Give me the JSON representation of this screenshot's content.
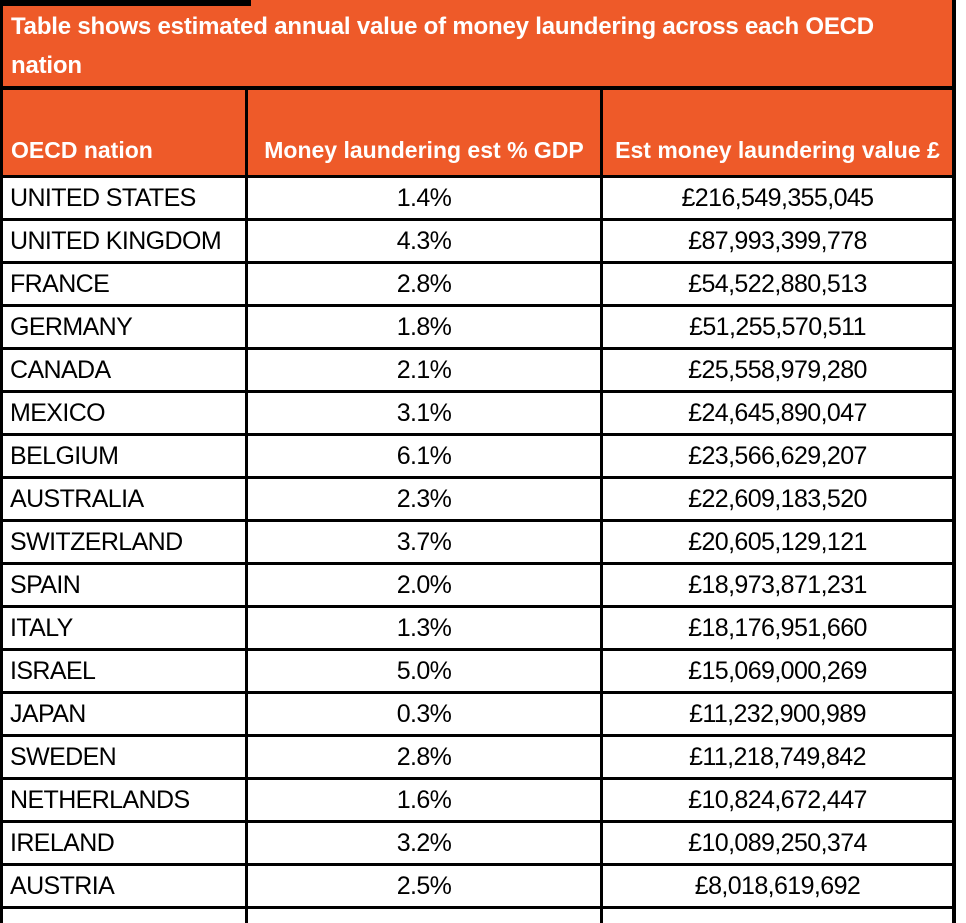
{
  "colors": {
    "accent_orange": "#EE5A29",
    "border_black": "#000000",
    "header_text": "#FFFFFF",
    "body_text": "#000000",
    "page_bg": "#FFFFFF"
  },
  "chart_data": {
    "type": "table",
    "title": "Table shows estimated annual value of money laundering across each OECD nation",
    "columns": [
      "OECD nation",
      "Money laundering est % GDP",
      "Est money laundering value £"
    ],
    "rows": [
      [
        "UNITED STATES",
        "1.4%",
        "£216,549,355,045"
      ],
      [
        "UNITED KINGDOM",
        "4.3%",
        "£87,993,399,778"
      ],
      [
        "FRANCE",
        "2.8%",
        "£54,522,880,513"
      ],
      [
        "GERMANY",
        "1.8%",
        "£51,255,570,511"
      ],
      [
        "CANADA",
        "2.1%",
        "£25,558,979,280"
      ],
      [
        "MEXICO",
        "3.1%",
        "£24,645,890,047"
      ],
      [
        "BELGIUM",
        "6.1%",
        "£23,566,629,207"
      ],
      [
        "AUSTRALIA",
        "2.3%",
        "£22,609,183,520"
      ],
      [
        "SWITZERLAND",
        "3.7%",
        "£20,605,129,121"
      ],
      [
        "SPAIN",
        "2.0%",
        "£18,973,871,231"
      ],
      [
        "ITALY",
        "1.3%",
        "£18,176,951,660"
      ],
      [
        "ISRAEL",
        "5.0%",
        "£15,069,000,269"
      ],
      [
        "JAPAN",
        "0.3%",
        "£11,232,900,989"
      ],
      [
        "SWEDEN",
        "2.8%",
        "£11,218,749,842"
      ],
      [
        "NETHERLANDS",
        "1.6%",
        "£10,824,672,447"
      ],
      [
        "IRELAND",
        "3.2%",
        "£10,089,250,374"
      ],
      [
        "AUSTRIA",
        "2.5%",
        "£8,018,619,692"
      ]
    ]
  }
}
